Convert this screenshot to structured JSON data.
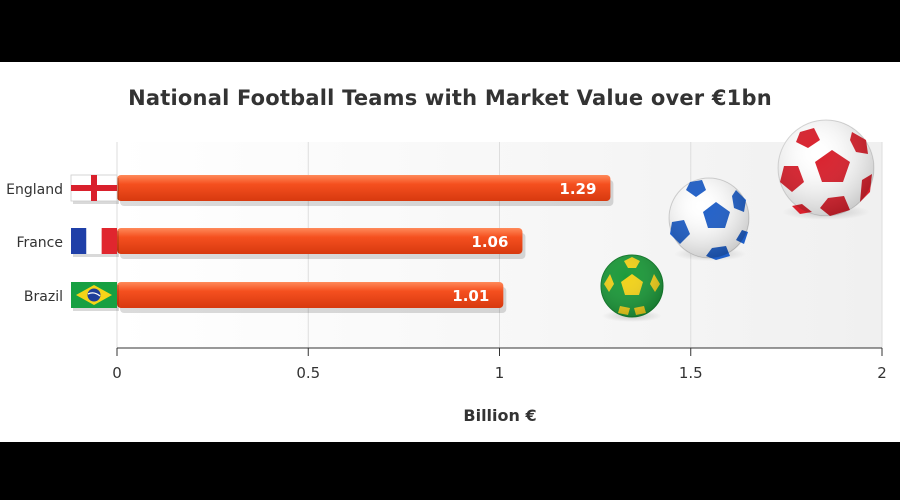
{
  "chart_data": {
    "type": "bar",
    "orientation": "horizontal",
    "title": "National Football Teams with Market Value over €1bn",
    "xlabel": "Billion €",
    "ylabel": "",
    "categories": [
      "England",
      "France",
      "Brazil"
    ],
    "values": [
      1.29,
      1.06,
      1.01
    ],
    "data_labels": [
      "1.29",
      "1.06",
      "1.01"
    ],
    "xlim": [
      0,
      2
    ],
    "xticks": [
      "0",
      "0.5",
      "1",
      "1.5",
      "2"
    ],
    "grid": "vertical",
    "bar_color": "#f04a1c",
    "plot_background": "#f2f2f2",
    "flags": [
      "england-flag-icon",
      "france-flag-icon",
      "brazil-flag-icon"
    ],
    "decorations": [
      "green-yellow-football-icon",
      "blue-white-football-icon",
      "red-white-football-icon"
    ]
  }
}
